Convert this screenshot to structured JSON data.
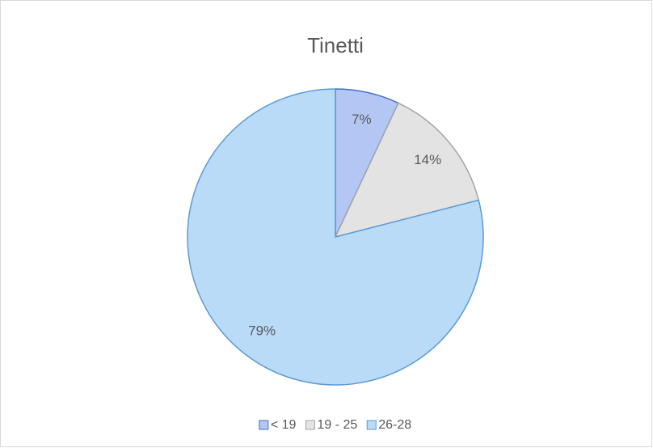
{
  "chart_data": {
    "type": "pie",
    "title": "Tinetti",
    "categories": [
      "< 19",
      "19 - 25",
      "26-28"
    ],
    "values": [
      7,
      14,
      79
    ],
    "value_labels": [
      "7%",
      "14%",
      "79%"
    ],
    "colors": [
      "#b4c6f3",
      "#e3e3e3",
      "#b9dbf8"
    ],
    "edgecolors": [
      "#4472c4",
      "#a5a5a5",
      "#5b9bd5"
    ],
    "legend": "bottom"
  }
}
